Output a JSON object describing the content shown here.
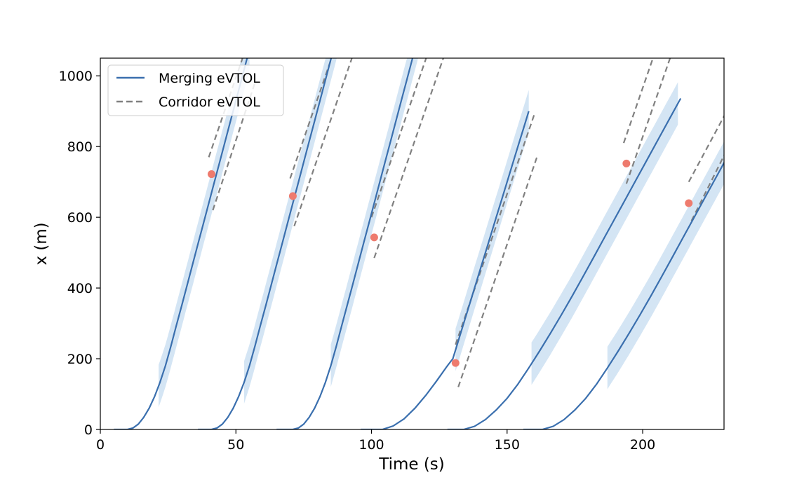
{
  "chart_data": {
    "type": "line",
    "title": "",
    "xlabel": "Time (s)",
    "ylabel": "x (m)",
    "xlim": [
      0,
      230
    ],
    "ylim": [
      0,
      1050
    ],
    "xticks": [
      0,
      50,
      100,
      150,
      200
    ],
    "yticks": [
      0,
      200,
      400,
      600,
      800,
      1000
    ],
    "grid": false,
    "legend": {
      "placement": "upper-left",
      "entries": [
        "Merging eVTOL",
        "Corridor eVTOL"
      ]
    },
    "colors": {
      "merging": "#3a6fae",
      "corridor": "#808080",
      "band": "#c6dcf0",
      "merge_point": "#ee7b6e"
    },
    "merging_trajectories": [
      {
        "t": [
          5,
          10,
          12,
          14,
          16,
          18,
          20,
          22,
          24,
          26,
          28,
          30,
          32,
          34,
          36,
          38,
          40,
          42,
          44,
          46,
          48,
          50,
          52,
          54,
          57
        ],
        "x": [
          0,
          0,
          4,
          15,
          34,
          60,
          93,
          133,
          180,
          235,
          293,
          350,
          408,
          466,
          524,
          582,
          640,
          698,
          756,
          814,
          872,
          930,
          988,
          1046,
          1130
        ]
      },
      {
        "t": [
          36,
          41,
          43,
          45,
          47,
          49,
          51,
          53,
          55,
          57,
          59,
          61,
          63,
          65,
          67,
          69,
          71,
          73,
          75,
          77,
          79,
          81,
          83,
          85,
          87,
          89,
          91,
          93
        ],
        "x": [
          0,
          0,
          4,
          15,
          34,
          60,
          93,
          133,
          180,
          235,
          293,
          350,
          408,
          466,
          524,
          582,
          640,
          698,
          756,
          814,
          872,
          930,
          988,
          1046,
          1104,
          1162,
          1220,
          1278
        ]
      },
      {
        "t": [
          65,
          71,
          73,
          75,
          77,
          79,
          81,
          83,
          85,
          87,
          89,
          91,
          93,
          95,
          97,
          99,
          101,
          103,
          105,
          107,
          109,
          111,
          113,
          115,
          117,
          119,
          121,
          123,
          125,
          127,
          129
        ],
        "x": [
          0,
          0,
          4,
          15,
          34,
          60,
          93,
          133,
          180,
          235,
          293,
          350,
          408,
          466,
          524,
          582,
          640,
          698,
          756,
          814,
          872,
          930,
          988,
          1046,
          1104,
          1162,
          1220,
          1278,
          1336,
          1394,
          1452
        ]
      },
      {
        "t": [
          96,
          104,
          108,
          112,
          116,
          120,
          124,
          128,
          130,
          132,
          134,
          136,
          138,
          140,
          142,
          144,
          146,
          148,
          150,
          152,
          154,
          156,
          158
        ],
        "x": [
          0,
          0,
          10,
          30,
          60,
          96,
          137,
          180,
          200,
          250,
          300,
          350,
          400,
          450,
          500,
          550,
          600,
          650,
          700,
          750,
          800,
          850,
          900
        ]
      },
      {
        "t": [
          128,
          134,
          138,
          142,
          146,
          150,
          154,
          158,
          162,
          166,
          170,
          174,
          178,
          182,
          186,
          190,
          194,
          198,
          202,
          206,
          210,
          214
        ],
        "x": [
          0,
          0,
          9,
          28,
          55,
          88,
          128,
          174,
          222,
          272,
          324,
          377,
          432,
          488,
          544,
          600,
          656,
          712,
          768,
          824,
          880,
          936
        ]
      },
      {
        "t": [
          156,
          163,
          167,
          171,
          175,
          179,
          183,
          187,
          191,
          195,
          199,
          203,
          207,
          211,
          215,
          219,
          223,
          227,
          231
        ],
        "x": [
          0,
          0,
          9,
          28,
          55,
          88,
          128,
          174,
          222,
          272,
          324,
          377,
          432,
          488,
          544,
          600,
          656,
          712,
          768
        ]
      }
    ],
    "band_ranges": [
      [
        21.5,
        55
      ],
      [
        53,
        90
      ],
      [
        85,
        130
      ],
      [
        131,
        158
      ],
      [
        159,
        213
      ],
      [
        187,
        231
      ]
    ],
    "band_halfwidth": 60,
    "corridor_lines": [
      {
        "t": [
          40,
          56
        ],
        "x": [
          770,
          1130
        ]
      },
      {
        "t": [
          41.5,
          57
        ],
        "x": [
          620,
          980
        ]
      },
      {
        "t": [
          70,
          92
        ],
        "x": [
          710,
          1200
        ]
      },
      {
        "t": [
          71.5,
          93
        ],
        "x": [
          575,
          1055
        ]
      },
      {
        "t": [
          100,
          130
        ],
        "x": [
          600,
          1270
        ]
      },
      {
        "t": [
          101,
          131
        ],
        "x": [
          485,
          1150
        ]
      },
      {
        "t": [
          131,
          160
        ],
        "x": [
          240,
          890
        ]
      },
      {
        "t": [
          132,
          161
        ],
        "x": [
          120,
          770
        ]
      },
      {
        "t": [
          193,
          220
        ],
        "x": [
          810,
          1410
        ]
      },
      {
        "t": [
          194,
          221
        ],
        "x": [
          695,
          1290
        ]
      },
      {
        "t": [
          217,
          231
        ],
        "x": [
          700,
          900
        ]
      },
      {
        "t": [
          218,
          231
        ],
        "x": [
          590,
          790
        ]
      }
    ],
    "merge_points": [
      {
        "t": 41,
        "x": 722
      },
      {
        "t": 71,
        "x": 660
      },
      {
        "t": 101,
        "x": 543
      },
      {
        "t": 131,
        "x": 188
      },
      {
        "t": 194,
        "x": 752
      },
      {
        "t": 217,
        "x": 640
      }
    ]
  }
}
